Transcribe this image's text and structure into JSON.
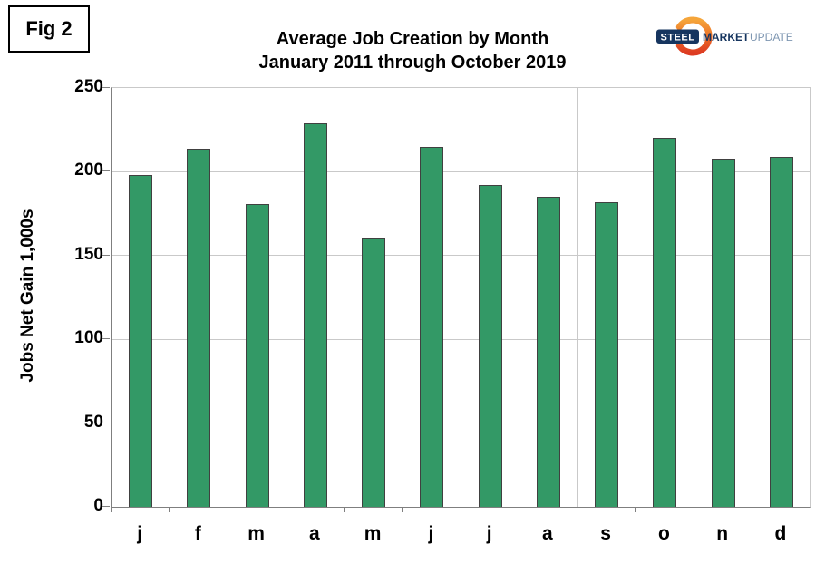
{
  "figure": {
    "label": "Fig 2"
  },
  "logo": {
    "text_steel": "STEEL",
    "text_market": "MARKET",
    "text_update": "UPDATE",
    "navy": "#16355F",
    "light_blue": "#7E96B1",
    "orange_top": "#F5A53B",
    "orange_mid": "#EC6F26",
    "orange_bottom": "#DD3B22"
  },
  "chart_data": {
    "type": "bar",
    "title": "Average Job Creation by Month",
    "subtitle": "January 2011 through October 2019",
    "xlabel": "",
    "ylabel": "Jobs Net Gain 1,000s",
    "categories": [
      "j",
      "f",
      "m",
      "a",
      "m",
      "j",
      "j",
      "a",
      "s",
      "o",
      "n",
      "d"
    ],
    "values": [
      198,
      214,
      181,
      229,
      160,
      215,
      192,
      185,
      182,
      220,
      208,
      209
    ],
    "ylim": [
      0,
      250
    ],
    "yticks": [
      0,
      50,
      100,
      150,
      200,
      250
    ],
    "ytick_interval": 50,
    "grid": true,
    "legend": "none",
    "bar_color": "#339966",
    "bar_border_color": "#404040",
    "gridline_color": "#c9c9c9",
    "axis_color": "#7f7f7f"
  }
}
